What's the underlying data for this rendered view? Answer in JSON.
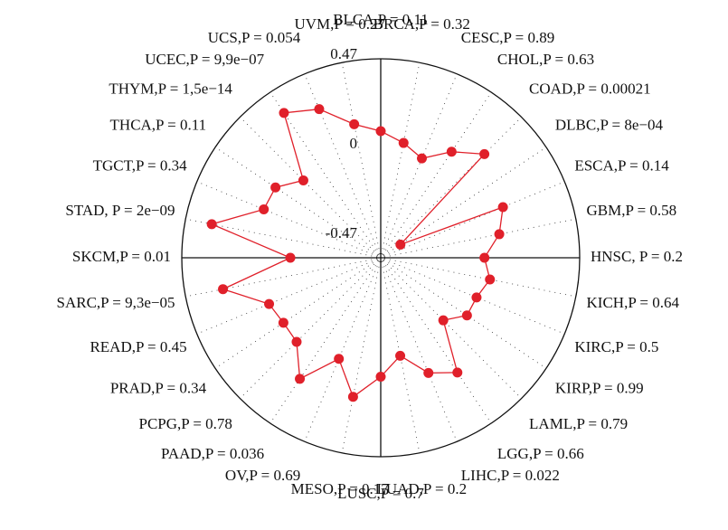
{
  "chart_data": {
    "type": "radar",
    "categories": [
      "BLCA,P = 0.11",
      "BRCA,P = 0.32",
      "CESC,P = 0.89",
      "CHOL,P = 0.63",
      "COAD,P = 0.00021",
      "DLBC,P = 8e−04",
      "ESCA,P = 0.14",
      "GBM,P = 0.58",
      "HNSC, P = 0.2",
      "KICH,P = 0.64",
      "KIRC,P = 0.5",
      "KIRP,P = 0.99",
      "LAML,P = 0.79",
      "LGG,P = 0.66",
      "LIHC,P = 0.022",
      "LUAD,P = 0.2",
      "LUSC,P = 0.7",
      "MESO,P = 0.17",
      "OV,P = 0.69",
      "PAAD,P = 0.036",
      "PCPG,P = 0.78",
      "PRAD,P = 0.34",
      "READ,P = 0.45",
      "SARC,P = 9,3e−05",
      "SKCM,P = 0.01",
      "STAD, P = 2e−09",
      "TGCT,P = 0.34",
      "THCA,P = 0.11",
      "THYM,P = 1,5e−14",
      "UCEC,P = 9,9e−07",
      "UCS,P = 0.054",
      "UVM,P = 0.27"
    ],
    "values": [
      0.09,
      0.04,
      -0.01,
      0.095,
      0.195,
      -0.45,
      0.12,
      0.06,
      -0.03,
      0.01,
      -0.03,
      -0.03,
      -0.11,
      0.15,
      0.08,
      -0.05,
      0.05,
      0.17,
      0.0,
      0.19,
      0.05,
      0.04,
      0.06,
      0.27,
      -0.1,
      0.33,
      0.09,
      0.09,
      0.0,
      0.34,
      0.27,
      0.14
    ],
    "color": "#e0202a",
    "ylim": [
      -0.47,
      0.47
    ],
    "yticks": [
      -0.47,
      0,
      0.47
    ],
    "grid": true
  }
}
